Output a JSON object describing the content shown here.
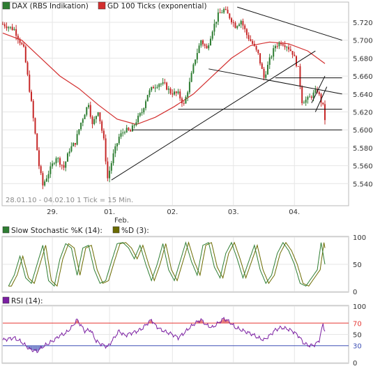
{
  "chart_data": [
    {
      "type": "candlestick",
      "legend": [
        {
          "label": "DAX (RBS Indikation)",
          "color": "#2e7d32"
        },
        {
          "label": "GD 100 Ticks (exponential)",
          "color": "#d32f2f"
        }
      ],
      "info_text": "28.01.10 - 04.02.10   1 Tick = 15 Min.",
      "x_ticks": [
        "29.",
        "01.",
        "02.",
        "03.",
        "04."
      ],
      "x_tick_sublabel": "Feb.",
      "ylim": [
        5520,
        5740
      ],
      "y_ticks": [
        "5.540",
        "5.560",
        "5.580",
        "5.600",
        "5.620",
        "5.640",
        "5.660",
        "5.680",
        "5.700",
        "5.720"
      ],
      "close_path": [
        [
          0,
          5718
        ],
        [
          6,
          5712
        ],
        [
          11,
          5690
        ],
        [
          15,
          5630
        ],
        [
          19,
          5560
        ],
        [
          21,
          5538
        ],
        [
          24,
          5552
        ],
        [
          28,
          5570
        ],
        [
          32,
          5558
        ],
        [
          35,
          5578
        ],
        [
          38,
          5586
        ],
        [
          41,
          5608
        ],
        [
          45,
          5630
        ],
        [
          47,
          5605
        ],
        [
          50,
          5622
        ],
        [
          53,
          5588
        ],
        [
          55,
          5546
        ],
        [
          58,
          5572
        ],
        [
          61,
          5592
        ],
        [
          64,
          5600
        ],
        [
          67,
          5598
        ],
        [
          70,
          5610
        ],
        [
          73,
          5620
        ],
        [
          76,
          5640
        ],
        [
          79,
          5648
        ],
        [
          82,
          5652
        ],
        [
          85,
          5650
        ],
        [
          88,
          5642
        ],
        [
          92,
          5640
        ],
        [
          95,
          5628
        ],
        [
          98,
          5652
        ],
        [
          101,
          5680
        ],
        [
          104,
          5700
        ],
        [
          107,
          5690
        ],
        [
          110,
          5712
        ],
        [
          113,
          5728
        ],
        [
          116,
          5734
        ],
        [
          119,
          5726
        ],
        [
          122,
          5716
        ],
        [
          125,
          5722
        ],
        [
          128,
          5706
        ],
        [
          131,
          5696
        ],
        [
          134,
          5684
        ],
        [
          137,
          5658
        ],
        [
          140,
          5678
        ],
        [
          143,
          5694
        ],
        [
          146,
          5698
        ],
        [
          149,
          5694
        ],
        [
          152,
          5686
        ],
        [
          155,
          5668
        ],
        [
          157,
          5632
        ],
        [
          160,
          5634
        ],
        [
          163,
          5640
        ],
        [
          165,
          5644
        ],
        [
          168,
          5626
        ],
        [
          169,
          5612
        ]
      ],
      "ema_path": [
        [
          0,
          5708
        ],
        [
          10,
          5700
        ],
        [
          20,
          5680
        ],
        [
          30,
          5660
        ],
        [
          40,
          5646
        ],
        [
          50,
          5628
        ],
        [
          60,
          5612
        ],
        [
          70,
          5606
        ],
        [
          80,
          5614
        ],
        [
          90,
          5626
        ],
        [
          100,
          5640
        ],
        [
          110,
          5660
        ],
        [
          120,
          5680
        ],
        [
          130,
          5694
        ],
        [
          140,
          5698
        ],
        [
          150,
          5696
        ],
        [
          160,
          5688
        ],
        [
          169,
          5674
        ]
      ],
      "trend_lines": [
        {
          "from": [
            123,
            5737
          ],
          "to": [
            178,
            5700
          ]
        },
        {
          "from": [
            108,
            5668
          ],
          "to": [
            178,
            5640
          ]
        },
        {
          "from": [
            57,
            5544
          ],
          "to": [
            164,
            5688
          ]
        },
        {
          "from": [
            162,
            5630
          ],
          "to": [
            169,
            5660
          ]
        },
        {
          "from": [
            164,
            5620
          ],
          "to": [
            170,
            5648
          ]
        },
        {
          "from": [
            143,
            5658
          ],
          "to": [
            178,
            5658
          ]
        },
        {
          "from": [
            92,
            5623
          ],
          "to": [
            178,
            5623
          ]
        },
        {
          "from": [
            68,
            5600
          ],
          "to": [
            178,
            5600
          ]
        }
      ]
    },
    {
      "type": "line",
      "series": [
        {
          "name": "Slow Stochastic %K (14):",
          "color": "#2e7d32"
        },
        {
          "name": "%D (3):",
          "color": "#6b6b00"
        }
      ],
      "ylim": [
        0,
        100
      ],
      "y_ticks": [
        "0",
        "50",
        "100"
      ],
      "k_path": [
        [
          3,
          10
        ],
        [
          6,
          30
        ],
        [
          9,
          65
        ],
        [
          12,
          25
        ],
        [
          15,
          15
        ],
        [
          18,
          50
        ],
        [
          21,
          85
        ],
        [
          24,
          20
        ],
        [
          27,
          10
        ],
        [
          30,
          60
        ],
        [
          33,
          88
        ],
        [
          36,
          80
        ],
        [
          39,
          30
        ],
        [
          42,
          80
        ],
        [
          45,
          85
        ],
        [
          48,
          40
        ],
        [
          51,
          15
        ],
        [
          54,
          20
        ],
        [
          57,
          55
        ],
        [
          60,
          88
        ],
        [
          63,
          90
        ],
        [
          66,
          80
        ],
        [
          69,
          60
        ],
        [
          72,
          85
        ],
        [
          75,
          50
        ],
        [
          78,
          20
        ],
        [
          81,
          50
        ],
        [
          84,
          88
        ],
        [
          87,
          40
        ],
        [
          90,
          20
        ],
        [
          93,
          55
        ],
        [
          96,
          90
        ],
        [
          99,
          55
        ],
        [
          102,
          30
        ],
        [
          105,
          85
        ],
        [
          108,
          90
        ],
        [
          111,
          45
        ],
        [
          114,
          25
        ],
        [
          117,
          70
        ],
        [
          120,
          90
        ],
        [
          123,
          60
        ],
        [
          126,
          25
        ],
        [
          129,
          55
        ],
        [
          132,
          85
        ],
        [
          135,
          40
        ],
        [
          138,
          15
        ],
        [
          141,
          30
        ],
        [
          144,
          70
        ],
        [
          147,
          90
        ],
        [
          150,
          75
        ],
        [
          153,
          50
        ],
        [
          156,
          15
        ],
        [
          159,
          10
        ],
        [
          162,
          25
        ],
        [
          165,
          40
        ],
        [
          167,
          90
        ],
        [
          169,
          50
        ]
      ]
    },
    {
      "type": "line",
      "series": [
        {
          "name": "RSI (14):",
          "color": "#7b1fa2"
        }
      ],
      "ylim": [
        0,
        100
      ],
      "y_ticks": [
        "0",
        "30",
        "50",
        "70",
        "100"
      ],
      "reference_lines": [
        70,
        30
      ],
      "rsi_path": [
        [
          0,
          40
        ],
        [
          6,
          44
        ],
        [
          10,
          36
        ],
        [
          14,
          24
        ],
        [
          18,
          20
        ],
        [
          21,
          28
        ],
        [
          24,
          34
        ],
        [
          27,
          40
        ],
        [
          30,
          48
        ],
        [
          33,
          52
        ],
        [
          36,
          62
        ],
        [
          39,
          76
        ],
        [
          41,
          66
        ],
        [
          43,
          56
        ],
        [
          46,
          58
        ],
        [
          49,
          38
        ],
        [
          52,
          32
        ],
        [
          55,
          28
        ],
        [
          58,
          42
        ],
        [
          61,
          56
        ],
        [
          64,
          48
        ],
        [
          67,
          52
        ],
        [
          70,
          55
        ],
        [
          73,
          60
        ],
        [
          76,
          70
        ],
        [
          78,
          76
        ],
        [
          80,
          66
        ],
        [
          83,
          58
        ],
        [
          86,
          54
        ],
        [
          89,
          50
        ],
        [
          92,
          44
        ],
        [
          95,
          52
        ],
        [
          98,
          62
        ],
        [
          101,
          70
        ],
        [
          104,
          76
        ],
        [
          107,
          66
        ],
        [
          110,
          62
        ],
        [
          113,
          70
        ],
        [
          116,
          78
        ],
        [
          119,
          72
        ],
        [
          122,
          62
        ],
        [
          125,
          58
        ],
        [
          128,
          54
        ],
        [
          131,
          50
        ],
        [
          134,
          44
        ],
        [
          137,
          40
        ],
        [
          140,
          48
        ],
        [
          143,
          58
        ],
        [
          146,
          62
        ],
        [
          149,
          60
        ],
        [
          152,
          56
        ],
        [
          155,
          48
        ],
        [
          158,
          34
        ],
        [
          161,
          30
        ],
        [
          164,
          32
        ],
        [
          166,
          40
        ],
        [
          168,
          68
        ],
        [
          170,
          44
        ]
      ]
    }
  ]
}
